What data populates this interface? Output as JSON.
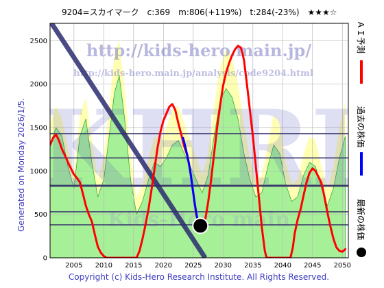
{
  "header": {
    "title": "9204=スカイマーク　c:369　m:806(+119%)　t:284(-23%)　★★★☆"
  },
  "side_label": "Generated on Monday 2026/1/5.",
  "copyright": "Copyright (c) Kids-Hero Research Institute. All Rights Reserved.",
  "watermark": {
    "url": "http://kids-hero.main.jp/",
    "page": "http://kids-hero.main.jp/analysis/code9204.html",
    "big": "KHRI",
    "faint": "Kids-Hero main"
  },
  "legend": {
    "ai_forecast": "ＡＩ予測",
    "past_price": "過去の株価",
    "latest_price": "最新の株価"
  },
  "colors": {
    "forecast": "#ff0000",
    "past": "#0000ff",
    "latest": "#000000",
    "band_green": "#90ee90",
    "band_yellow": "#ffff99",
    "band_line": "#3aa83a",
    "hlines": "#3a3a6e",
    "trend": "#2a2a6e",
    "grid": "#b8b8b8"
  },
  "chart_data": {
    "type": "line",
    "title": "9204=スカイマーク　c:369　m:806(+119%)　t:284(-23%)　★★★☆",
    "xlim": [
      2001,
      2051
    ],
    "ylim": [
      0,
      2700
    ],
    "x_ticks": [
      2005,
      2010,
      2015,
      2020,
      2025,
      2030,
      2035,
      2040,
      2045,
      2050
    ],
    "y_ticks": [
      0,
      500,
      1000,
      1500,
      2000,
      2500
    ],
    "grid": true,
    "legend_position": "right",
    "horizontal_levels": [
      {
        "value": 1430,
        "weight": "normal"
      },
      {
        "value": 1150,
        "weight": "normal"
      },
      {
        "value": 830,
        "weight": "bold"
      },
      {
        "value": 530,
        "weight": "normal"
      },
      {
        "value": 380,
        "weight": "normal"
      }
    ],
    "trend_line": {
      "x": [
        2000.3,
        2027.0
      ],
      "y": [
        2800,
        0
      ]
    },
    "latest_point": {
      "x": 2026.2,
      "y": 369
    },
    "series": [
      {
        "name": "ＡＩ予測",
        "points": [
          [
            2001,
            1300
          ],
          [
            2001.5,
            1380
          ],
          [
            2002,
            1420
          ],
          [
            2002.5,
            1350
          ],
          [
            2003,
            1250
          ],
          [
            2003.5,
            1180
          ],
          [
            2004,
            1100
          ],
          [
            2004.5,
            1030
          ],
          [
            2005,
            960
          ],
          [
            2005.5,
            920
          ],
          [
            2006,
            870
          ],
          [
            2006.5,
            740
          ],
          [
            2007,
            600
          ],
          [
            2007.5,
            500
          ],
          [
            2008,
            420
          ],
          [
            2008.5,
            270
          ],
          [
            2009,
            130
          ],
          [
            2009.5,
            60
          ],
          [
            2010,
            20
          ],
          [
            2010.5,
            0
          ],
          [
            2015.5,
            0
          ],
          [
            2016,
            80
          ],
          [
            2016.5,
            220
          ],
          [
            2017,
            380
          ],
          [
            2017.5,
            560
          ],
          [
            2018,
            780
          ],
          [
            2018.5,
            1020
          ],
          [
            2019,
            1260
          ],
          [
            2019.5,
            1450
          ],
          [
            2020,
            1580
          ],
          [
            2020.5,
            1660
          ],
          [
            2021,
            1740
          ],
          [
            2021.5,
            1770
          ],
          [
            2022,
            1700
          ],
          [
            2022.5,
            1550
          ],
          [
            2023,
            1420
          ],
          [
            2023.5,
            1280
          ],
          [
            2024,
            1180
          ],
          [
            2024.5,
            1000
          ],
          [
            2025,
            750
          ],
          [
            2025.5,
            500
          ],
          [
            2026,
            369
          ],
          [
            2027,
            430
          ],
          [
            2027.5,
            640
          ],
          [
            2028,
            900
          ],
          [
            2028.5,
            1200
          ],
          [
            2029,
            1500
          ],
          [
            2029.5,
            1750
          ],
          [
            2030,
            1980
          ],
          [
            2030.5,
            2130
          ],
          [
            2031,
            2240
          ],
          [
            2031.5,
            2330
          ],
          [
            2032,
            2400
          ],
          [
            2032.5,
            2440
          ],
          [
            2033,
            2420
          ],
          [
            2033.5,
            2280
          ],
          [
            2034,
            2000
          ],
          [
            2034.5,
            1700
          ],
          [
            2035,
            1400
          ],
          [
            2035.5,
            1050
          ],
          [
            2036,
            700
          ],
          [
            2036.5,
            350
          ],
          [
            2037,
            80
          ],
          [
            2037.3,
            0
          ],
          [
            2041.3,
            0
          ],
          [
            2041.7,
            120
          ],
          [
            2042,
            280
          ],
          [
            2042.5,
            440
          ],
          [
            2043,
            560
          ],
          [
            2043.5,
            720
          ],
          [
            2044,
            870
          ],
          [
            2044.5,
            980
          ],
          [
            2045,
            1030
          ],
          [
            2045.5,
            1000
          ],
          [
            2046,
            930
          ],
          [
            2046.5,
            860
          ],
          [
            2047,
            700
          ],
          [
            2047.5,
            520
          ],
          [
            2048,
            360
          ],
          [
            2048.5,
            220
          ],
          [
            2049,
            120
          ],
          [
            2049.5,
            80
          ],
          [
            2050,
            70
          ],
          [
            2050.5,
            100
          ]
        ]
      },
      {
        "name": "過去の株価",
        "points": [
          [
            2023.3,
            1380
          ],
          [
            2023.6,
            1300
          ],
          [
            2024,
            1180
          ],
          [
            2024.3,
            1080
          ],
          [
            2024.6,
            950
          ],
          [
            2024.9,
            800
          ],
          [
            2025.2,
            650
          ],
          [
            2025.5,
            520
          ],
          [
            2025.8,
            420
          ],
          [
            2026.2,
            369
          ]
        ]
      }
    ],
    "bands": {
      "green_upper": [
        [
          2001,
          1300
        ],
        [
          2002,
          1500
        ],
        [
          2003,
          1400
        ],
        [
          2004,
          1050
        ],
        [
          2005,
          800
        ],
        [
          2006,
          1400
        ],
        [
          2007,
          1600
        ],
        [
          2008,
          1100
        ],
        [
          2009,
          700
        ],
        [
          2010,
          900
        ],
        [
          2011,
          1450
        ],
        [
          2011.8,
          1900
        ],
        [
          2012.6,
          2100
        ],
        [
          2013.5,
          1600
        ],
        [
          2014.5,
          900
        ],
        [
          2015.5,
          500
        ],
        [
          2016.5,
          650
        ],
        [
          2017.5,
          900
        ],
        [
          2018.5,
          1100
        ],
        [
          2019.5,
          1050
        ],
        [
          2020.5,
          1150
        ],
        [
          2021.5,
          1300
        ],
        [
          2022.5,
          1350
        ],
        [
          2023.5,
          1200
        ],
        [
          2024.5,
          1050
        ],
        [
          2025.5,
          900
        ],
        [
          2026.5,
          750
        ],
        [
          2027.5,
          950
        ],
        [
          2028.5,
          1400
        ],
        [
          2029.5,
          1800
        ],
        [
          2030.5,
          1950
        ],
        [
          2031.5,
          1850
        ],
        [
          2032.5,
          1600
        ],
        [
          2033.5,
          1200
        ],
        [
          2034.5,
          900
        ],
        [
          2035.5,
          700
        ],
        [
          2036.5,
          750
        ],
        [
          2037.5,
          1050
        ],
        [
          2038.5,
          1300
        ],
        [
          2039.5,
          1200
        ],
        [
          2040.5,
          850
        ],
        [
          2041.5,
          650
        ],
        [
          2042.5,
          700
        ],
        [
          2043.5,
          950
        ],
        [
          2044.5,
          1100
        ],
        [
          2045.5,
          1050
        ],
        [
          2046.5,
          800
        ],
        [
          2047.5,
          600
        ],
        [
          2048.5,
          800
        ],
        [
          2049.5,
          1150
        ],
        [
          2050.5,
          1400
        ]
      ],
      "yellow_upper": [
        [
          2001,
          1550
        ],
        [
          2002,
          1750
        ],
        [
          2003,
          1600
        ],
        [
          2004,
          1250
        ],
        [
          2005,
          950
        ],
        [
          2006,
          1650
        ],
        [
          2007,
          1850
        ],
        [
          2008,
          1350
        ],
        [
          2009,
          900
        ],
        [
          2010,
          1150
        ],
        [
          2011,
          1800
        ],
        [
          2011.8,
          2350
        ],
        [
          2012.6,
          2500
        ],
        [
          2013.5,
          1950
        ],
        [
          2014.5,
          1200
        ],
        [
          2015.5,
          700
        ],
        [
          2016.5,
          850
        ],
        [
          2017.5,
          1150
        ],
        [
          2018.5,
          1400
        ],
        [
          2019.5,
          1350
        ],
        [
          2020.5,
          1500
        ],
        [
          2021.5,
          1700
        ],
        [
          2022.5,
          1750
        ],
        [
          2023.5,
          1550
        ],
        [
          2024.5,
          1350
        ],
        [
          2025.5,
          1150
        ],
        [
          2026.5,
          950
        ],
        [
          2027.5,
          1200
        ],
        [
          2028.5,
          1750
        ],
        [
          2029.5,
          2200
        ],
        [
          2030.5,
          2400
        ],
        [
          2031.5,
          2300
        ],
        [
          2032.5,
          2000
        ],
        [
          2033.5,
          1550
        ],
        [
          2034.5,
          1150
        ],
        [
          2035.5,
          900
        ],
        [
          2036.5,
          950
        ],
        [
          2037.5,
          1300
        ],
        [
          2038.5,
          1650
        ],
        [
          2039.5,
          1550
        ],
        [
          2040.5,
          1100
        ],
        [
          2041.5,
          850
        ],
        [
          2042.5,
          900
        ],
        [
          2043.5,
          1200
        ],
        [
          2044.5,
          1400
        ],
        [
          2045.5,
          1350
        ],
        [
          2046.5,
          1050
        ],
        [
          2047.5,
          800
        ],
        [
          2048.5,
          1050
        ],
        [
          2049.5,
          1500
        ],
        [
          2050.5,
          1800
        ]
      ]
    }
  }
}
